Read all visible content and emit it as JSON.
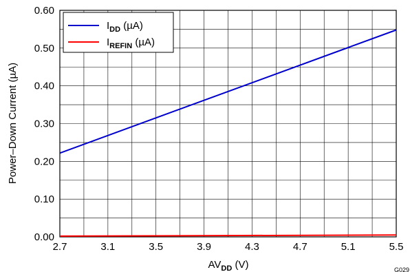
{
  "chart_data": {
    "type": "line",
    "title": "",
    "xlabel": {
      "main": "AV",
      "sub": "DD",
      "unit": " (V)"
    },
    "ylabel": "Power–Down Current (µA)",
    "xlim": [
      2.7,
      5.5
    ],
    "ylim": [
      0,
      0.6
    ],
    "x_ticks": [
      "2.7",
      "3.1",
      "3.5",
      "3.9",
      "4.3",
      "4.7",
      "5.1",
      "5.5"
    ],
    "y_ticks": [
      "0.00",
      "0.10",
      "0.20",
      "0.30",
      "0.40",
      "0.50",
      "0.60"
    ],
    "x": [
      2.7,
      5.5
    ],
    "series": [
      {
        "name_main": "I",
        "name_sub": "DD",
        "name_unit": " (µA)",
        "color": "#0000cc",
        "values": [
          0.222,
          0.548
        ]
      },
      {
        "name_main": "I",
        "name_sub": "REFIN",
        "name_unit": " (µA)",
        "color": "#ff0000",
        "values": [
          0.002,
          0.005
        ]
      }
    ],
    "grid": true,
    "legend_position": "top-left",
    "figure_id": "G029"
  }
}
